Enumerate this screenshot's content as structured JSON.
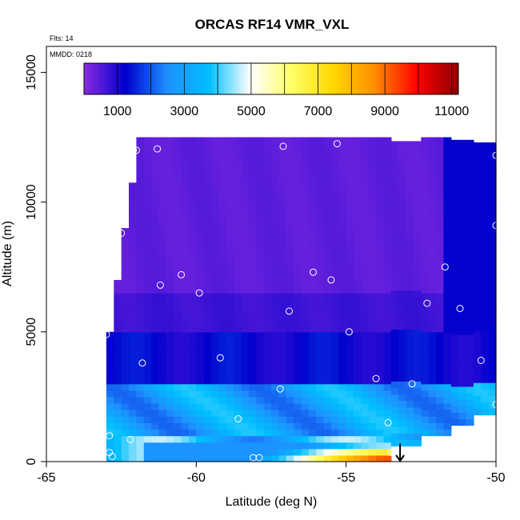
{
  "chart_data": {
    "type": "heatmap",
    "title": "ORCAS RF14 VMR_VXL",
    "annotations": [
      "Flts: 14",
      "MMDD: 0218"
    ],
    "xlabel": "Latitude (deg N)",
    "ylabel": "Altitude (m)",
    "xlim": [
      -65,
      -50
    ],
    "ylim": [
      0,
      16000
    ],
    "x_ticks": [
      -65,
      -60,
      -55,
      -50
    ],
    "y_ticks": [
      0,
      5000,
      10000,
      15000
    ],
    "colorbar": {
      "range": [
        0,
        11200
      ],
      "ticks": [
        1000,
        3000,
        5000,
        7000,
        9000,
        11000
      ],
      "colors": [
        "#8a2be2",
        "#0000cd",
        "#1e90ff",
        "#00bfff",
        "#ffffff",
        "#ffff66",
        "#ffd700",
        "#ff8c00",
        "#ff0000",
        "#8b0000"
      ]
    },
    "flight_points": [
      {
        "lat": -63.0,
        "alt": 4900
      },
      {
        "lat": -62.5,
        "alt": 8800
      },
      {
        "lat": -62.1,
        "alt": 12000
      },
      {
        "lat": -62.0,
        "alt": 12000
      },
      {
        "lat": -61.3,
        "alt": 12050
      },
      {
        "lat": -61.2,
        "alt": 6800
      },
      {
        "lat": -60.5,
        "alt": 7200
      },
      {
        "lat": -59.9,
        "alt": 6500
      },
      {
        "lat": -57.1,
        "alt": 12150
      },
      {
        "lat": -56.9,
        "alt": 5800
      },
      {
        "lat": -56.1,
        "alt": 7300
      },
      {
        "lat": -55.5,
        "alt": 7000
      },
      {
        "lat": -55.3,
        "alt": 12250
      },
      {
        "lat": -54.9,
        "alt": 5000
      },
      {
        "lat": -54.0,
        "alt": 3200
      },
      {
        "lat": -52.8,
        "alt": 3000
      },
      {
        "lat": -52.3,
        "alt": 6100
      },
      {
        "lat": -51.7,
        "alt": 7500
      },
      {
        "lat": -51.2,
        "alt": 5900
      },
      {
        "lat": -50.5,
        "alt": 3900
      },
      {
        "lat": -50.05,
        "alt": 12450
      },
      {
        "lat": -50.0,
        "alt": 11800
      },
      {
        "lat": -50.0,
        "alt": 9100
      },
      {
        "lat": -50.0,
        "alt": 2200
      },
      {
        "lat": -57.2,
        "alt": 2800
      },
      {
        "lat": -58.6,
        "alt": 1650
      },
      {
        "lat": -59.2,
        "alt": 4000
      },
      {
        "lat": -61.8,
        "alt": 3800
      },
      {
        "lat": -53.6,
        "alt": 1500
      },
      {
        "lat": -62.9,
        "alt": 1000
      },
      {
        "lat": -62.2,
        "alt": 850
      },
      {
        "lat": -62.9,
        "alt": 350
      },
      {
        "lat": -62.8,
        "alt": 200
      },
      {
        "lat": -58.1,
        "alt": 150
      },
      {
        "lat": -57.9,
        "alt": 150
      },
      {
        "lat": -53.5,
        "alt": 350
      },
      {
        "lat": -53.4,
        "alt": 350
      },
      {
        "lat": -53.3,
        "alt": 350
      }
    ],
    "heatmap_summary": {
      "upper_region_value": 300,
      "mid_region_value": 1200,
      "low_region_value": 3000,
      "surface_max_value": 10500,
      "surface_max_lat": -53.2
    }
  }
}
